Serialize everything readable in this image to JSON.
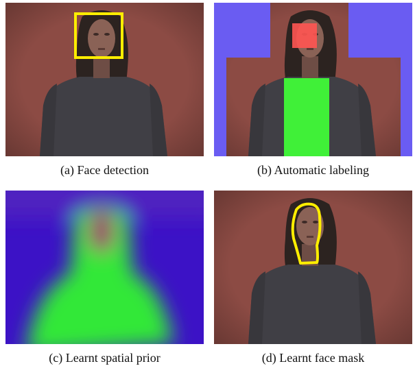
{
  "panels": [
    {
      "caption": "(a) Face detection"
    },
    {
      "caption": "(b) Automatic labeling"
    },
    {
      "caption": "(c) Learnt spatial prior"
    },
    {
      "caption": "(d) Learnt face mask"
    }
  ]
}
